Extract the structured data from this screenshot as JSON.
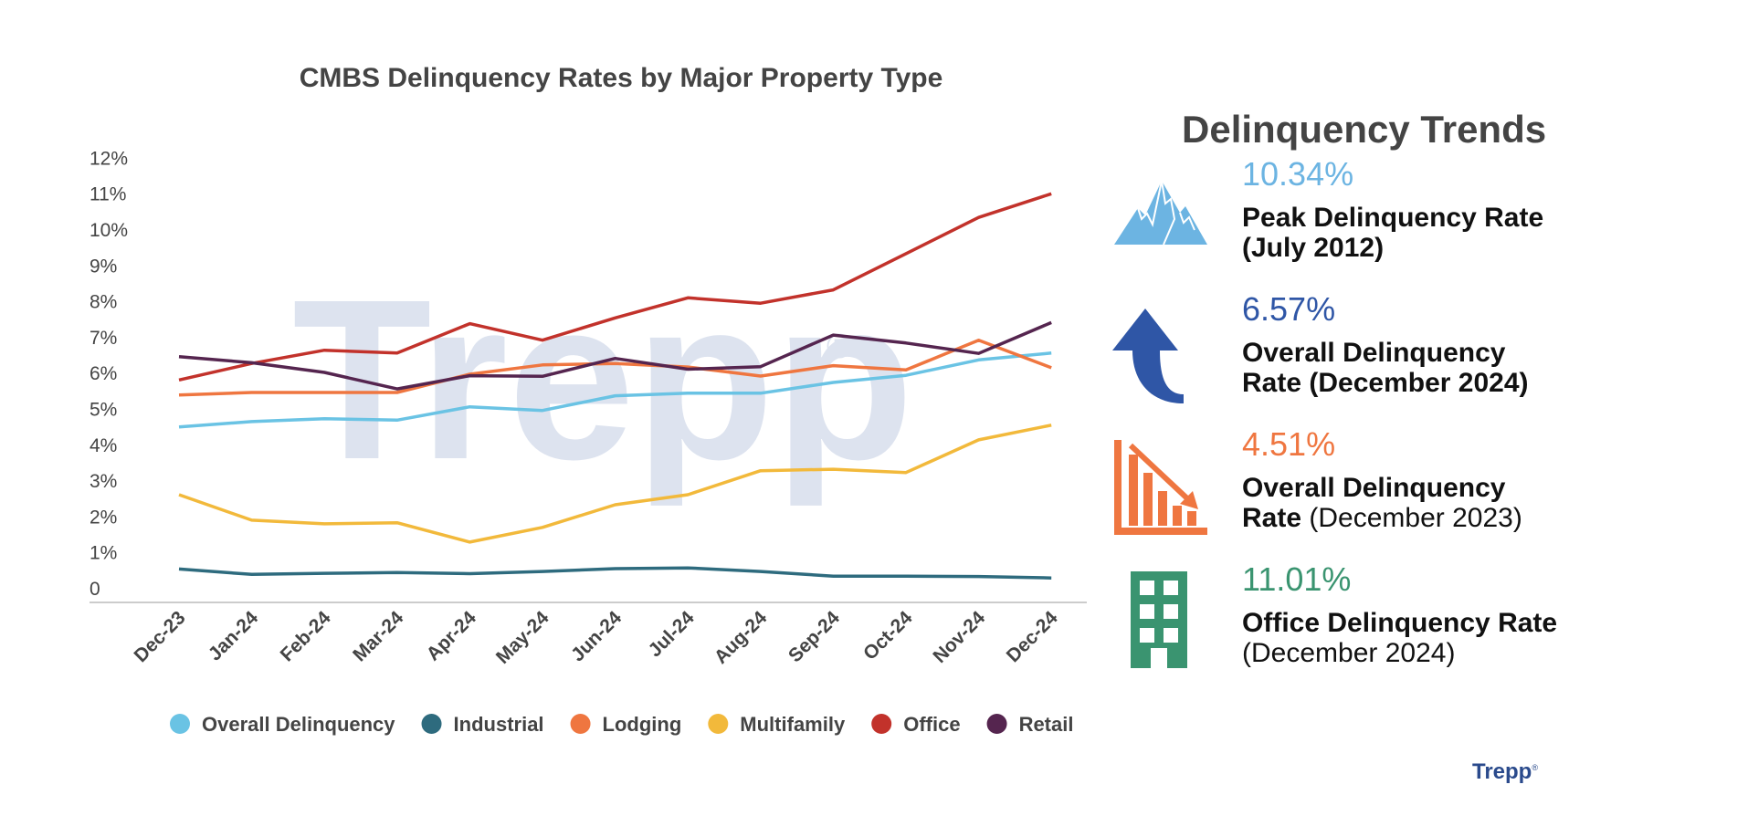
{
  "chart_data": {
    "type": "line",
    "title": "CMBS Delinquency Rates by Major Property Type",
    "categories": [
      "Dec-23",
      "Jan-24",
      "Feb-24",
      "Mar-24",
      "Apr-24",
      "May-24",
      "Jun-24",
      "Jul-24",
      "Aug-24",
      "Sep-24",
      "Oct-24",
      "Nov-24",
      "Dec-24"
    ],
    "y_tick_labels": [
      "0",
      "1%",
      "2%",
      "3%",
      "4%",
      "5%",
      "6%",
      "7%",
      "8%",
      "9%",
      "10%",
      "11%",
      "12%"
    ],
    "ylim": [
      0,
      12
    ],
    "grid": false,
    "legend_position": "bottom",
    "series": [
      {
        "name": "Overall Delinquency",
        "color": "#6ac3e4",
        "values": [
          4.51,
          4.66,
          4.74,
          4.7,
          5.07,
          4.97,
          5.38,
          5.45,
          5.45,
          5.75,
          5.95,
          6.38,
          6.57
        ]
      },
      {
        "name": "Industrial",
        "color": "#2e6b7e",
        "values": [
          0.55,
          0.4,
          0.43,
          0.45,
          0.42,
          0.48,
          0.56,
          0.58,
          0.48,
          0.35,
          0.35,
          0.34,
          0.3
        ]
      },
      {
        "name": "Lodging",
        "color": "#ef7640",
        "values": [
          5.4,
          5.47,
          5.47,
          5.47,
          5.98,
          6.24,
          6.28,
          6.18,
          5.93,
          6.22,
          6.1,
          6.93,
          6.16
        ]
      },
      {
        "name": "Multifamily",
        "color": "#f2b93b",
        "values": [
          2.62,
          1.91,
          1.81,
          1.84,
          1.3,
          1.71,
          2.34,
          2.62,
          3.29,
          3.33,
          3.24,
          4.15,
          4.56
        ]
      },
      {
        "name": "Office",
        "color": "#c2322b",
        "values": [
          5.82,
          6.28,
          6.65,
          6.57,
          7.39,
          6.93,
          7.55,
          8.11,
          7.96,
          8.33,
          9.34,
          10.35,
          11.01
        ]
      },
      {
        "name": "Retail",
        "color": "#55254f",
        "values": [
          6.47,
          6.3,
          6.03,
          5.57,
          5.94,
          5.92,
          6.42,
          6.12,
          6.19,
          7.07,
          6.85,
          6.56,
          7.42
        ]
      }
    ]
  },
  "watermark": {
    "text": "Trepp",
    "mark": "®"
  },
  "trends": {
    "title": "Delinquency Trends",
    "items": [
      {
        "value": "10.34%",
        "color": "#6cb4e2",
        "icon": "mountain-icon",
        "line1": "Peak Delinquency Rate",
        "line2": "(July 2012)"
      },
      {
        "value": "6.57%",
        "color": "#2f56a6",
        "icon": "up-arrow-icon",
        "line1": "Overall Delinquency",
        "line2": "Rate (December 2024)"
      },
      {
        "value": "4.51%",
        "color": "#ef7640",
        "icon": "declining-chart-icon",
        "line1": "Overall Delinquency",
        "line2a": "Rate",
        "line2b": " (December 2023)"
      },
      {
        "value": "11.01%",
        "color": "#3a9470",
        "icon": "office-building-icon",
        "line1": "Office Delinquency Rate",
        "line2": "(December 2024)"
      }
    ]
  },
  "brand": {
    "name": "Trepp",
    "mark": "®"
  }
}
